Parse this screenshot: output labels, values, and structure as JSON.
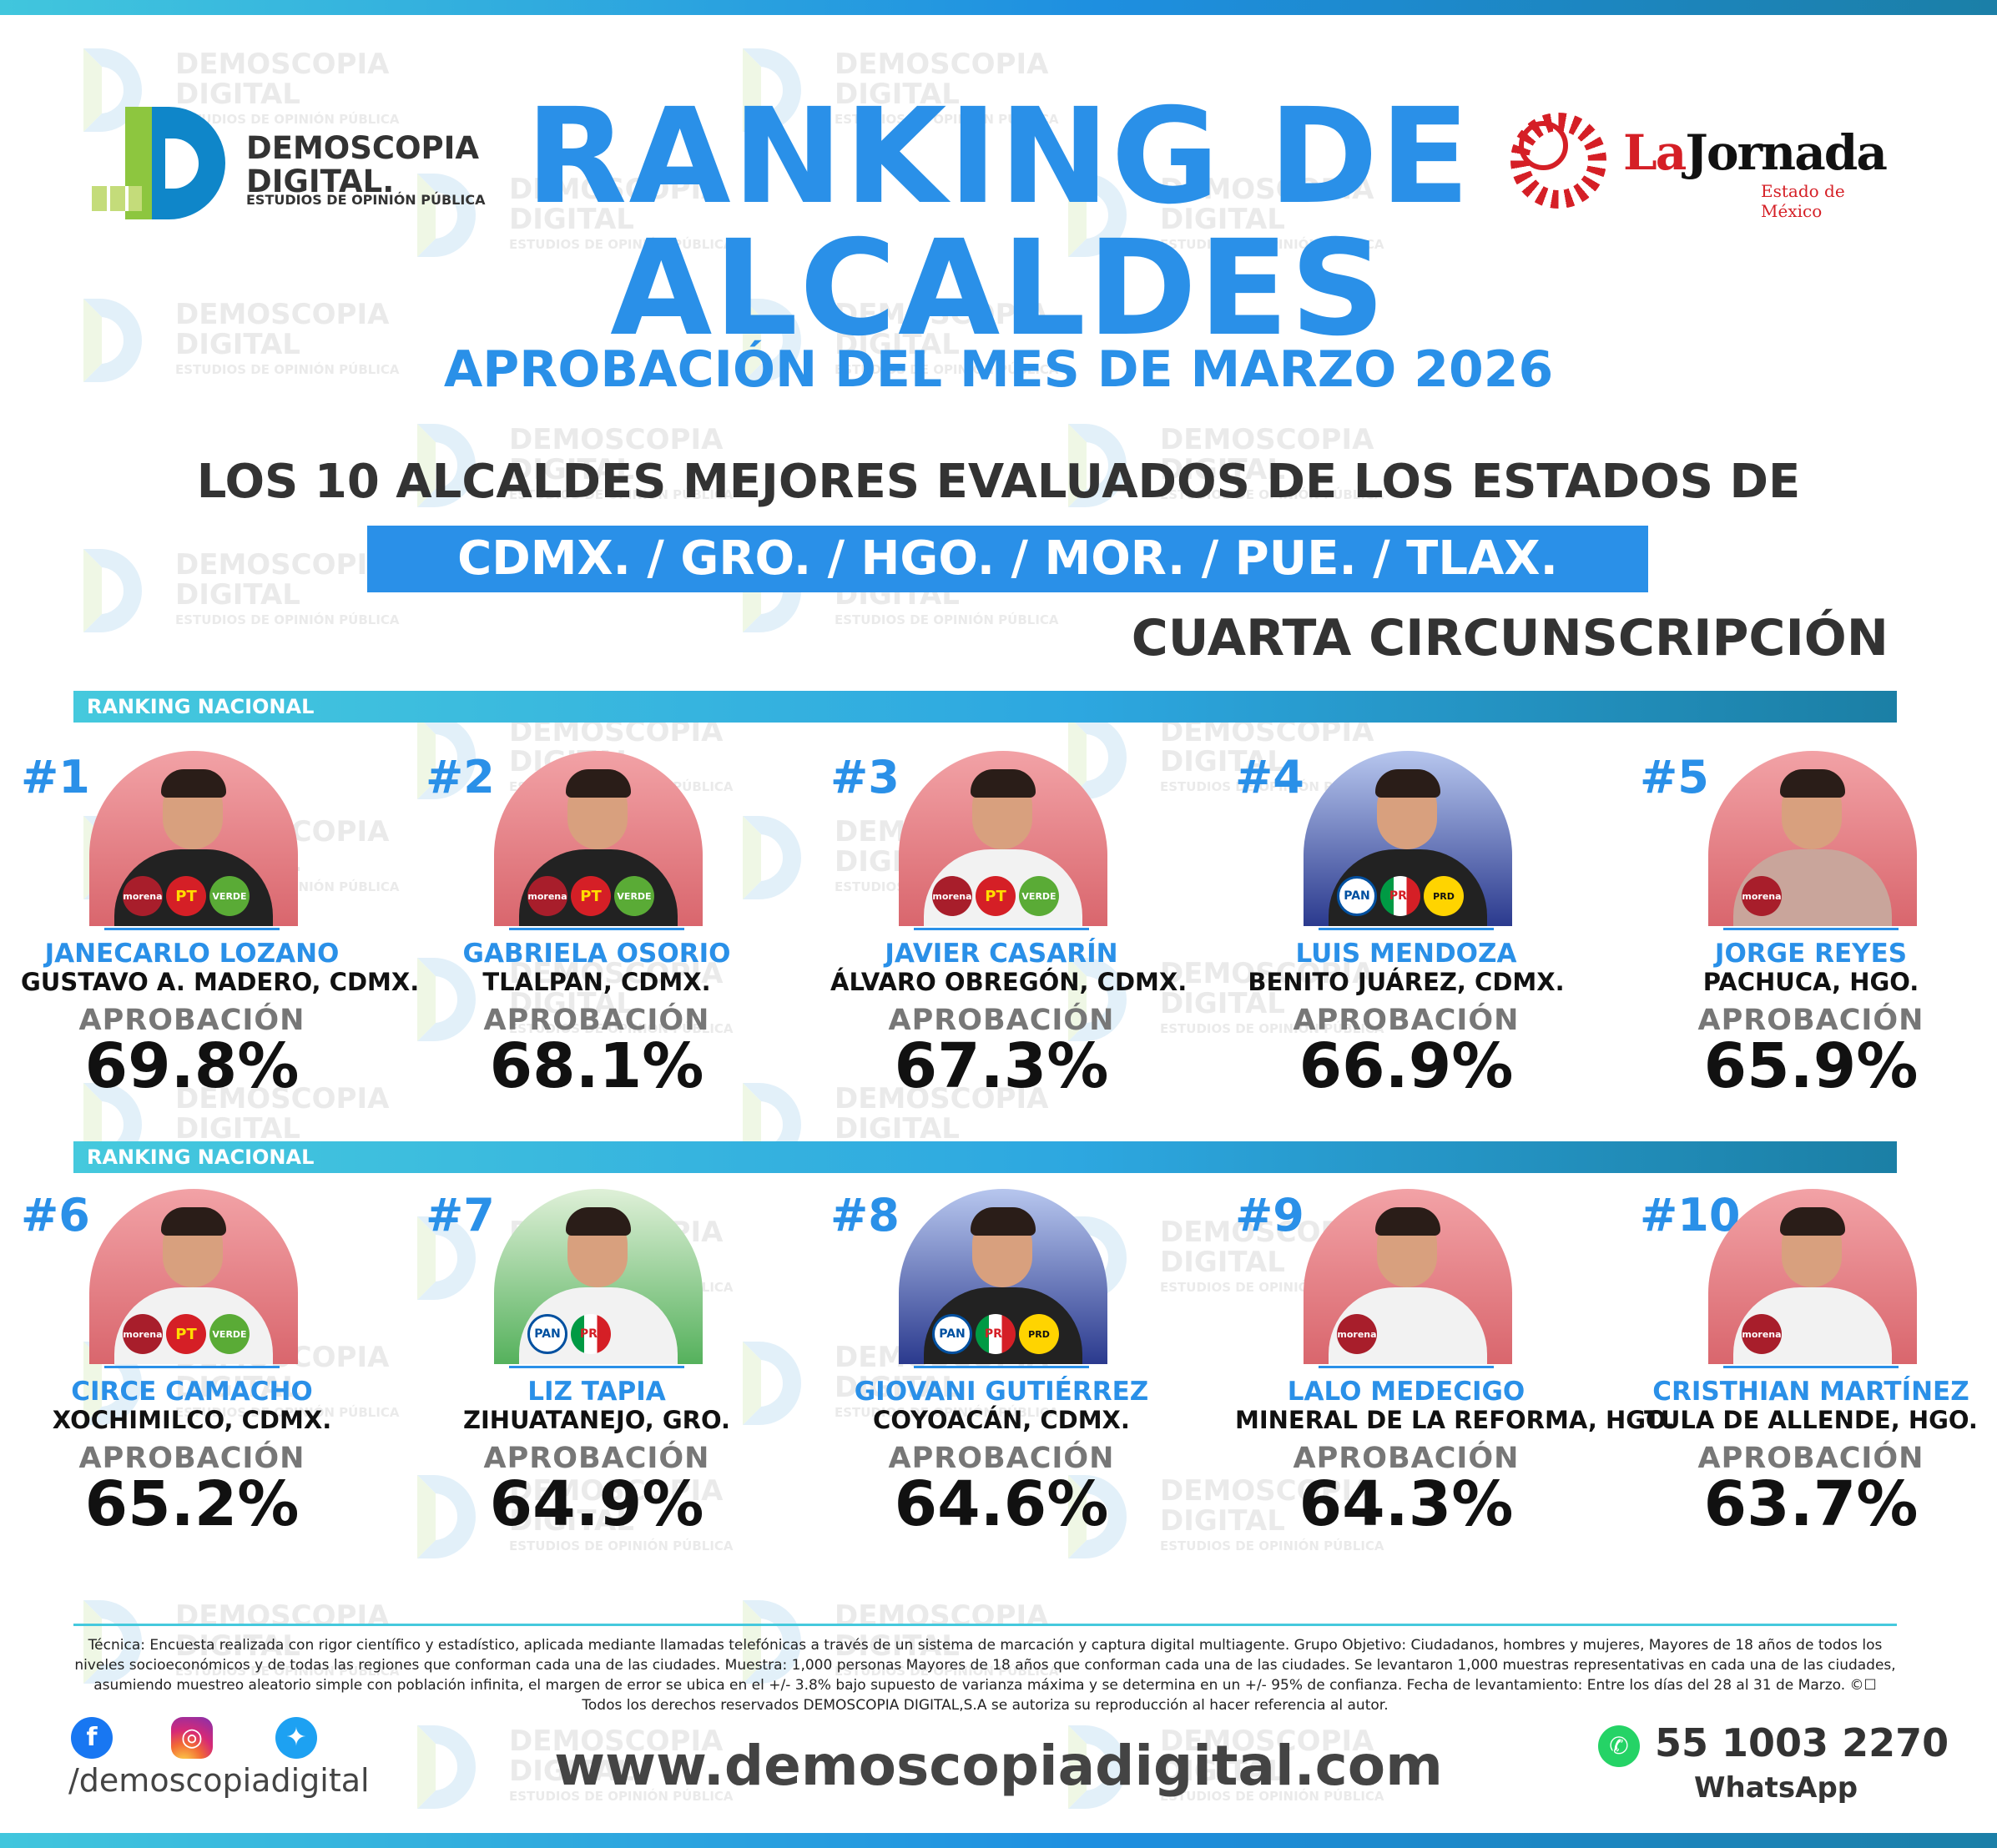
{
  "watermark": {
    "line1": "DEMOSCOPIA",
    "line2": "DIGITAL",
    "line3": "ESTUDIOS DE OPINIÓN PÚBLICA"
  },
  "logo_left": {
    "name_line1": "DEMOSCOPIA",
    "name_line2": "DIGITAL.",
    "tagline": "ESTUDIOS DE OPINIÓN PÚBLICA"
  },
  "logo_right": {
    "name_part1": "La",
    "name_part2": "Jornada",
    "sub": "Estado de México"
  },
  "header": {
    "title_line1": "RANKING DE",
    "title_line2": "ALCALDES",
    "subtitle": "APROBACIÓN DEL MES DE MARZO 2026",
    "lead": "LOS 10 ALCALDES MEJORES EVALUADOS DE LOS ESTADOS DE",
    "states": "CDMX. /  GRO.  /  HGO.  /  MOR.  /  PUE.  /  TLAX.",
    "circunscripcion": "CUARTA CIRCUNSCRIPCIÓN"
  },
  "section_label": "RANKING NACIONAL",
  "approval_label": "APROBACIÓN",
  "ranking": [
    {
      "rank": "#1",
      "name": "JANECARLO LOZANO",
      "place": "GUSTAVO A. MADERO, CDMX.",
      "approval": "69.8%",
      "bg": "red",
      "parties": [
        "morena",
        "PT",
        "VERDE"
      ]
    },
    {
      "rank": "#2",
      "name": "GABRIELA OSORIO",
      "place": "TLALPAN, CDMX.",
      "approval": "68.1%",
      "bg": "red",
      "parties": [
        "morena",
        "PT",
        "VERDE"
      ]
    },
    {
      "rank": "#3",
      "name": "JAVIER CASARÍN",
      "place": "ÁLVARO OBREGÓN, CDMX.",
      "approval": "67.3%",
      "bg": "red",
      "parties": [
        "morena",
        "PT",
        "VERDE"
      ]
    },
    {
      "rank": "#4",
      "name": "LUIS MENDOZA",
      "place": "BENITO JUÁREZ, CDMX.",
      "approval": "66.9%",
      "bg": "blue",
      "parties": [
        "PAN",
        "PRI",
        "PRD"
      ]
    },
    {
      "rank": "#5",
      "name": "JORGE REYES",
      "place": "PACHUCA, HGO.",
      "approval": "65.9%",
      "bg": "red",
      "parties": [
        "morena"
      ]
    },
    {
      "rank": "#6",
      "name": "CIRCE CAMACHO",
      "place": "XOCHIMILCO, CDMX.",
      "approval": "65.2%",
      "bg": "red",
      "parties": [
        "morena",
        "PT",
        "VERDE"
      ]
    },
    {
      "rank": "#7",
      "name": "LIZ TAPIA",
      "place": "ZIHUATANEJO, GRO.",
      "approval": "64.9%",
      "bg": "green",
      "parties": [
        "PAN",
        "PRI"
      ]
    },
    {
      "rank": "#8",
      "name": "GIOVANI GUTIÉRREZ",
      "place": "COYOACÁN, CDMX.",
      "approval": "64.6%",
      "bg": "blue",
      "parties": [
        "PAN",
        "PRI",
        "PRD"
      ]
    },
    {
      "rank": "#9",
      "name": "LALO MEDECIGO",
      "place": "MINERAL DE LA REFORMA, HGO.",
      "approval": "64.3%",
      "bg": "red",
      "parties": [
        "morena"
      ]
    },
    {
      "rank": "#10",
      "name": "CRISTHIAN MARTÍNEZ",
      "place": "TULA DE ALLENDE, HGO.",
      "approval": "63.7%",
      "bg": "red",
      "parties": [
        "morena"
      ]
    }
  ],
  "footer": {
    "tecnica": "Técnica: Encuesta realizada con rigor científico y estadístico, aplicada mediante llamadas telefónicas a través de un sistema de marcación y captura digital multiagente. Grupo Objetivo: Ciudadanos, hombres y mujeres, Mayores de 18 años de todos los niveles socioeconómicos y de todas las regiones que conforman cada una de las ciudades. Muestra: 1,000 personas Mayores de 18 años que conforman cada una de las ciudades. Se levantaron 1,000 muestras representativas en cada una de las ciudades, asumiendo muestreo aleatorio simple con población infinita, el margen de error se ubica en el +/- 3.8% bajo supuesto de varianza máxima y se determina en un +/- 95% de confianza. Fecha de levantamiento: Entre los días del 28 al 31 de Marzo. ©☐ Todos los derechos reservados DEMOSCOPIA DIGITAL,S.A se autoriza su reproducción al hacer referencia al autor.",
    "handle": "/demoscopiadigital",
    "website": "www.demoscopiadigital.com",
    "phone": "55 1003 2270",
    "whatsapp": "WhatsApp"
  },
  "colors": {
    "accent": "#2a90e8",
    "text": "#333333",
    "stripe_start": "#41c6dd",
    "stripe_end": "#1b7fa7"
  },
  "icons": {
    "facebook": "facebook-icon",
    "instagram": "instagram-icon",
    "twitter": "twitter-icon",
    "whatsapp": "whatsapp-icon"
  }
}
